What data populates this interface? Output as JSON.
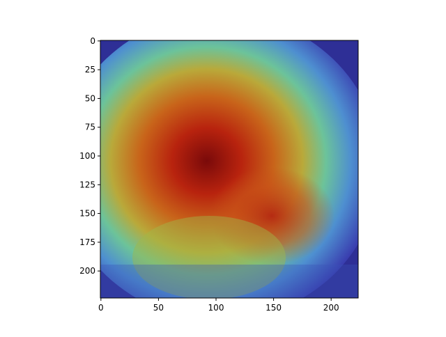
{
  "chart_data": {
    "type": "image",
    "xlim": [
      -0.5,
      223.5
    ],
    "ylim": [
      223.5,
      -0.5
    ],
    "xticks": [
      0,
      50,
      100,
      150,
      200
    ],
    "yticks": [
      0,
      25,
      50,
      75,
      100,
      125,
      150,
      175,
      200
    ],
    "colormap": "jet"
  }
}
